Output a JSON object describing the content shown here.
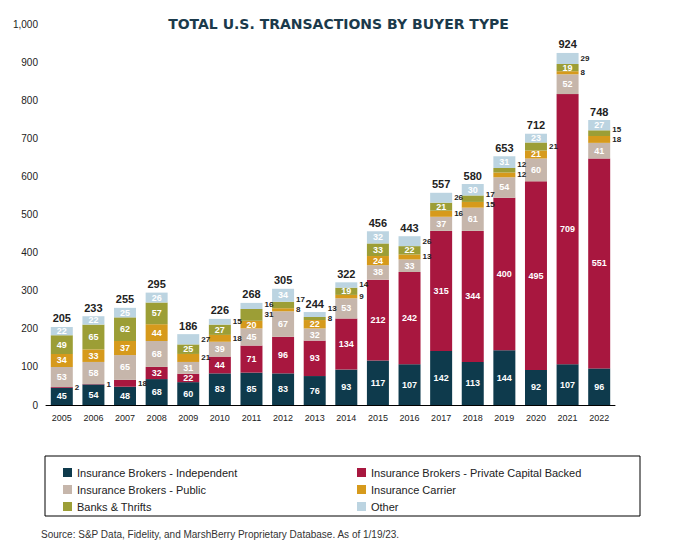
{
  "chart_data": {
    "type": "bar",
    "title": "TOTAL U.S. TRANSACTIONS BY BUYER TYPE",
    "source": "Source: S&P Data, Fidelity, and MarshBerry Proprietary Database. As of 1/19/23.",
    "categories": [
      "2005",
      "2006",
      "2007",
      "2008",
      "2009",
      "2010",
      "2011",
      "2012",
      "2013",
      "2014",
      "2015",
      "2016",
      "2017",
      "2018",
      "2019",
      "2020",
      "2021",
      "2022"
    ],
    "series": [
      {
        "name": "Insurance Brokers - Independent",
        "color": "#0e3a4c",
        "values": [
          45,
          54,
          48,
          68,
          60,
          83,
          85,
          83,
          76,
          93,
          117,
          107,
          142,
          113,
          144,
          92,
          107,
          96
        ]
      },
      {
        "name": "Insurance Brokers - Private Capital Backed",
        "color": "#a8173f",
        "values": [
          2,
          1,
          18,
          32,
          22,
          44,
          71,
          96,
          93,
          134,
          212,
          242,
          315,
          344,
          400,
          495,
          709,
          551
        ]
      },
      {
        "name": "Insurance Brokers - Public",
        "color": "#c6b6ab",
        "values": [
          53,
          58,
          65,
          68,
          31,
          39,
          45,
          67,
          32,
          53,
          38,
          33,
          37,
          61,
          54,
          60,
          52,
          41
        ]
      },
      {
        "name": "Insurance Carrier",
        "color": "#d69a1c",
        "values": [
          34,
          33,
          37,
          44,
          21,
          18,
          20,
          8,
          22,
          9,
          24,
          13,
          16,
          15,
          12,
          21,
          8,
          18
        ]
      },
      {
        "name": "Banks & Thrifts",
        "color": "#9c9e36",
        "values": [
          49,
          65,
          62,
          57,
          25,
          27,
          31,
          17,
          8,
          19,
          33,
          22,
          21,
          17,
          12,
          21,
          19,
          15
        ]
      },
      {
        "name": "Other",
        "color": "#bcd4e1",
        "values": [
          22,
          22,
          25,
          26,
          27,
          15,
          16,
          34,
          13,
          14,
          32,
          26,
          26,
          30,
          31,
          23,
          29,
          27
        ]
      }
    ],
    "totals": [
      205,
      233,
      255,
      295,
      186,
      226,
      268,
      305,
      244,
      322,
      456,
      443,
      557,
      580,
      653,
      712,
      924,
      748
    ],
    "ylim": [
      0,
      1000
    ],
    "yticks": [
      0,
      100,
      200,
      300,
      400,
      500,
      600,
      700,
      800,
      900,
      {
        "value": 1000,
        "label": "1,000"
      }
    ],
    "grid": false,
    "stacked": true,
    "data_labels": true,
    "legend": "bottom"
  }
}
